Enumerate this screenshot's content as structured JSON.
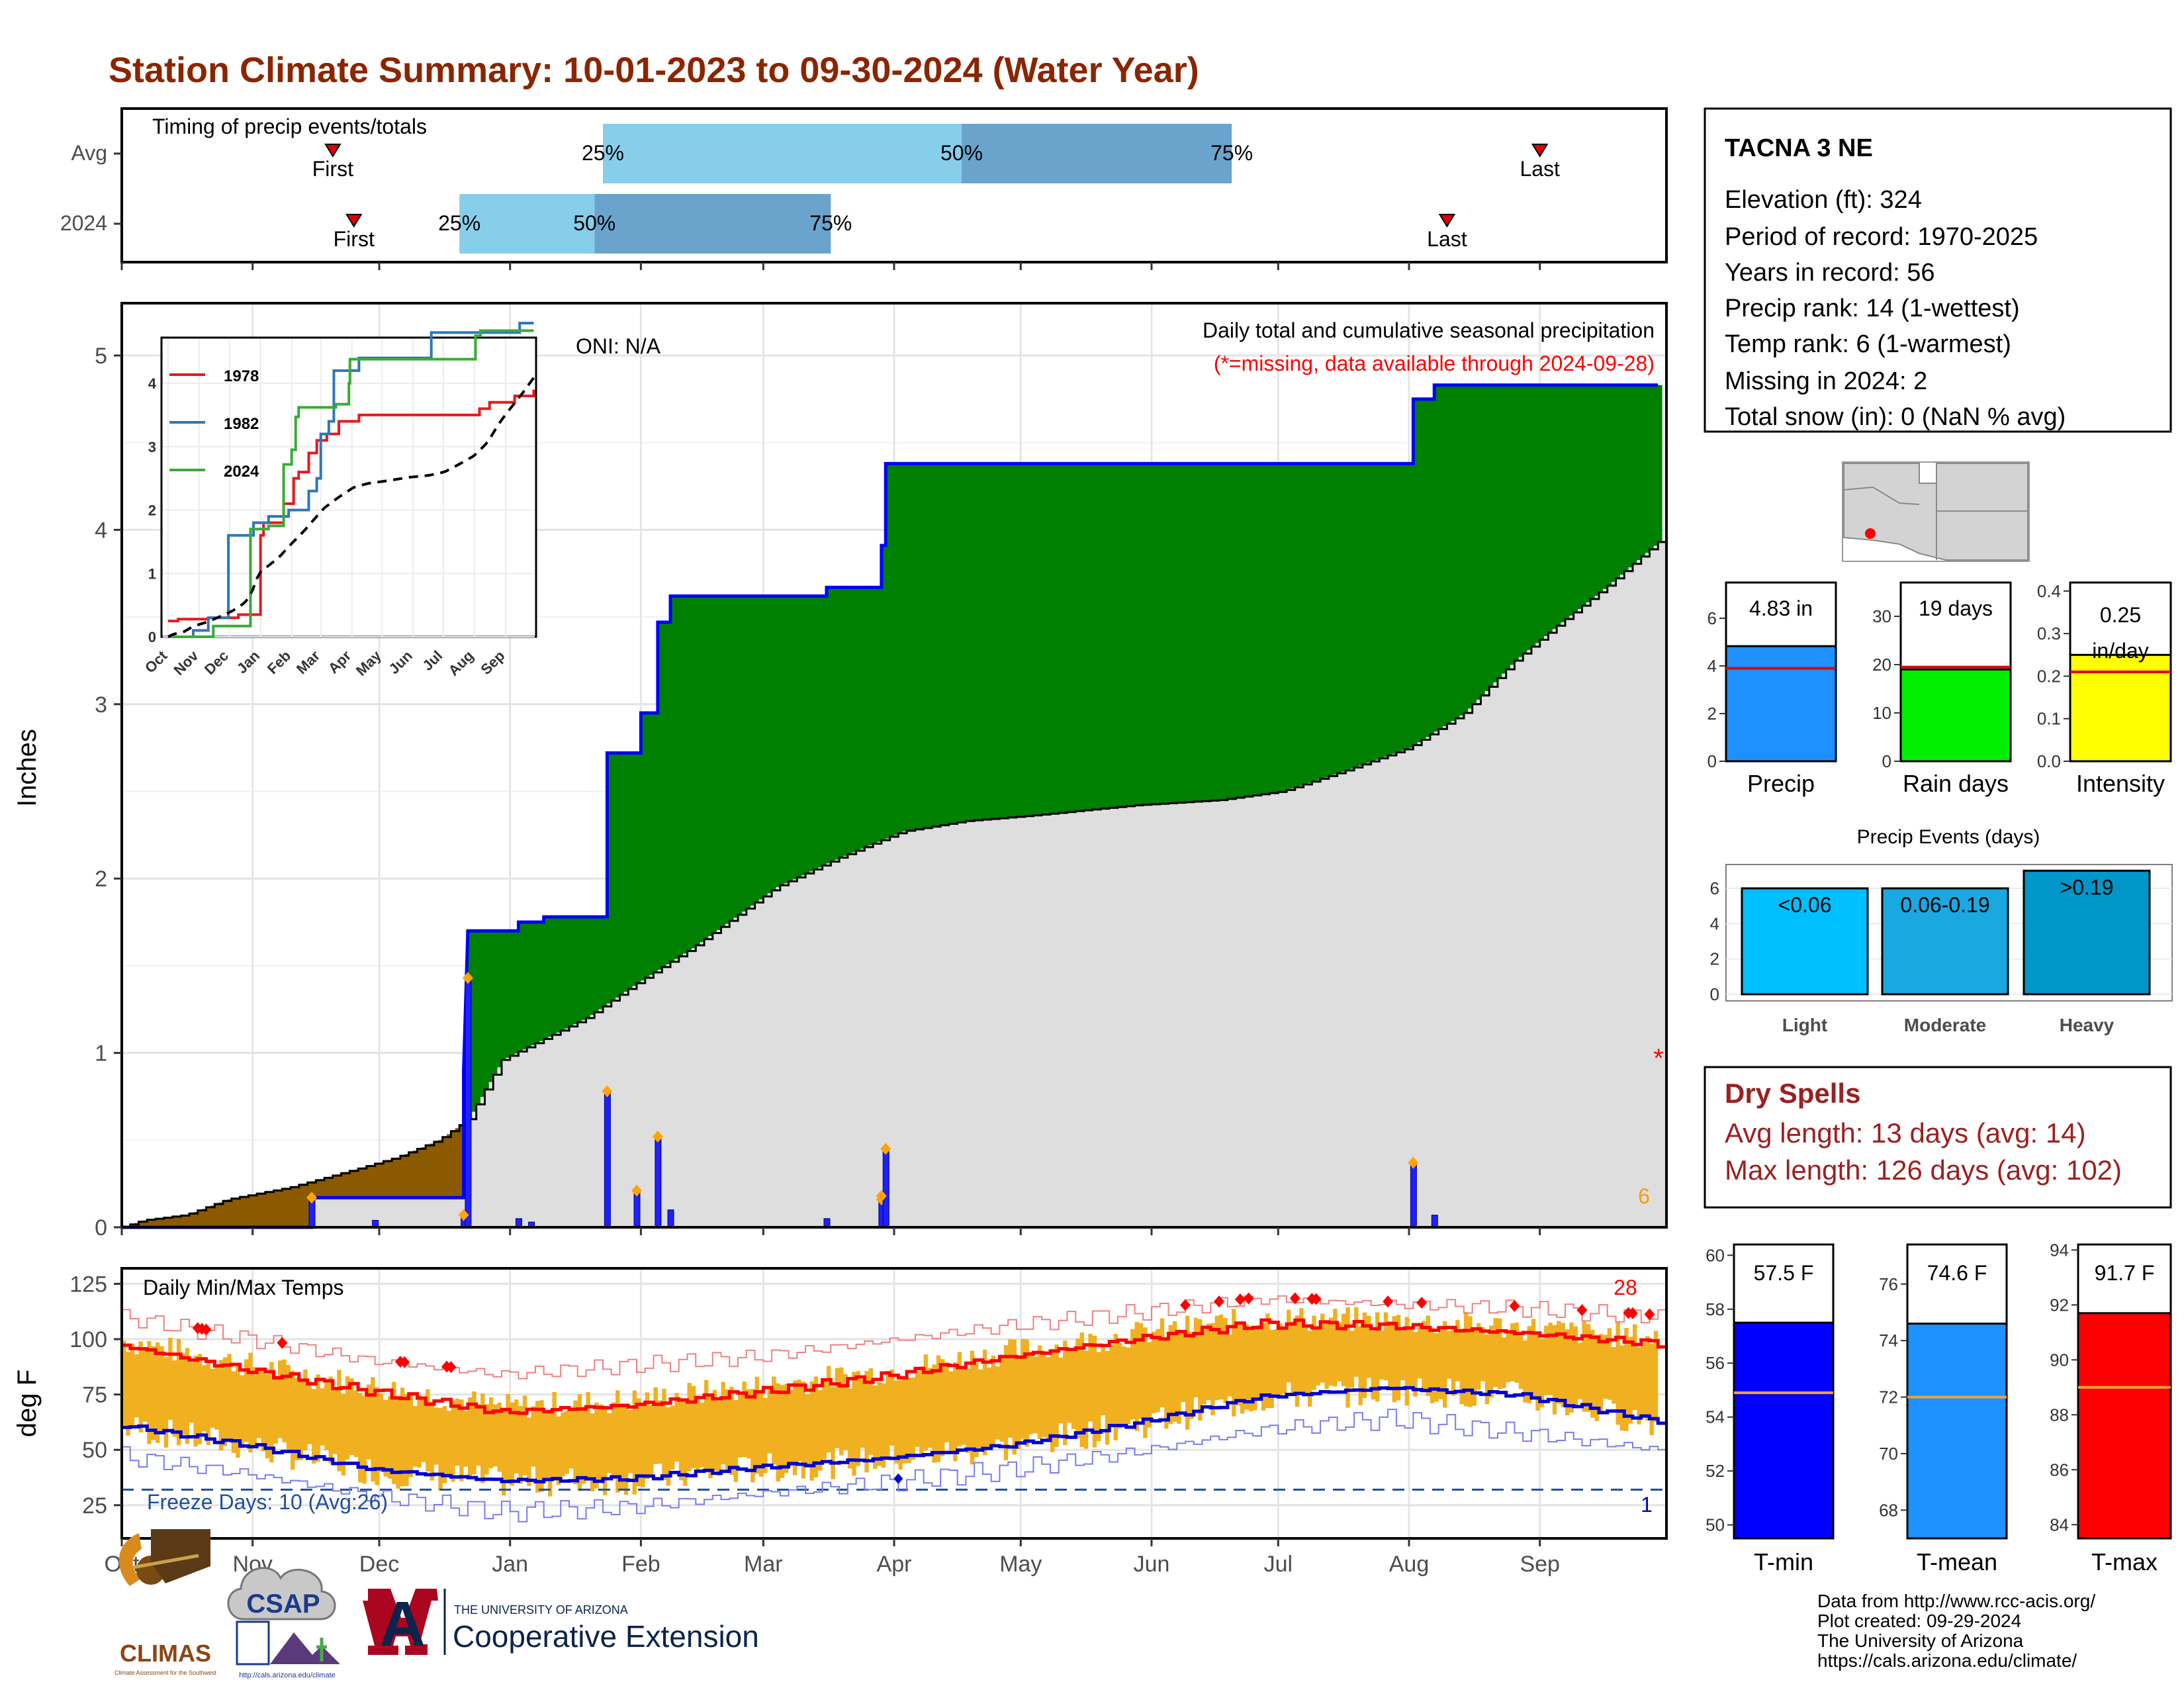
{
  "title": "Station Climate Summary: 10-01-2023 to 09-30-2024 (Water Year)",
  "colors": {
    "title": "#8b2500",
    "precip_fill": "#008000",
    "deficit_fill": "#8b5a00",
    "normal_fill": "#dedede",
    "precip_line": "#0000ff",
    "temp_band": "#f0b020",
    "tmax_avg": "#ff0000",
    "tmin_avg": "#0000cd",
    "dry": "#9b2020",
    "light_blue": "#87ceeb",
    "mid_blue": "#6aa4cc"
  },
  "timing": {
    "title": "Timing of precip events/totals",
    "rows": [
      {
        "label": "Avg",
        "first_label": "First",
        "last_label": "Last",
        "first": "2023-11-20",
        "last": "2024-09-01",
        "p25": "2024-01-23",
        "p50": "2024-04-17",
        "p75": "2024-06-20",
        "p25_label": "25%",
        "p50_label": "50%",
        "p75_label": "75%"
      },
      {
        "label": "2024",
        "first_label": "First",
        "last_label": "Last",
        "first": "2023-11-25",
        "last": "2024-08-10",
        "p25": "2023-12-20",
        "p50": "2024-01-21",
        "p75": "2024-03-17",
        "p25_label": "25%",
        "p50_label": "50%",
        "p75_label": "75%"
      }
    ]
  },
  "months": [
    "Oct",
    "Nov",
    "Dec",
    "Jan",
    "Feb",
    "Mar",
    "Apr",
    "May",
    "Jun",
    "Jul",
    "Aug",
    "Sep"
  ],
  "precip_panel": {
    "ylabel": "Inches",
    "title": "Daily total and cumulative seasonal precipitation",
    "subtitle": "(*=missing, data available through 2024-09-28)",
    "oni": "ONI: N/A",
    "missing_marker": "*",
    "missing_count": "6",
    "yticks": [
      "0",
      "1",
      "2",
      "3",
      "4",
      "5"
    ],
    "ylim": [
      0,
      5.3
    ]
  },
  "inset": {
    "xticks": [
      "Oct",
      "Nov",
      "Dec",
      "Jan",
      "Feb",
      "Mar",
      "Apr",
      "May",
      "Jun",
      "Jul",
      "Aug",
      "Sep"
    ],
    "yticks": [
      "0",
      "1",
      "2",
      "3",
      "4"
    ],
    "legend": [
      {
        "name": "1978",
        "color": "#e8191e"
      },
      {
        "name": "1982",
        "color": "#2e78b7"
      },
      {
        "name": "2024",
        "color": "#3aab36"
      }
    ]
  },
  "temp_panel": {
    "ylabel": "deg F",
    "title": "Daily Min/Max Temps",
    "freeze_text": "Freeze Days: 10 (Avg:26)",
    "hot_count": "28",
    "cold_count": "1",
    "yticks": [
      "25",
      "50",
      "75",
      "100",
      "125"
    ],
    "ylim": [
      10,
      132
    ],
    "freeze_line": 32
  },
  "station": {
    "name": "TACNA 3 NE",
    "lines": [
      "Elevation (ft): 324",
      "Period of record: 1970-2025",
      "Years in record: 56",
      "Precip rank: 14 (1-wettest)",
      "Temp rank: 6 (1-warmest)",
      "Missing in 2024: 2",
      "Total snow (in): 0 (NaN % avg)"
    ]
  },
  "mini_bars": [
    {
      "label": "Precip",
      "value_text": "4.83 in",
      "value": 4.83,
      "avg": 3.9,
      "ymax": 7.5,
      "yticks": [
        "0",
        "2",
        "4",
        "6"
      ],
      "color": "#1e90ff"
    },
    {
      "label": "Rain days",
      "value_text": "19 days",
      "value": 19,
      "avg": 19.5,
      "ymax": 37,
      "yticks": [
        "0",
        "10",
        "20",
        "30"
      ],
      "color": "#00ee00"
    },
    {
      "label": "Intensity",
      "value_text": "0.25 in/day",
      "value": 0.25,
      "avg": 0.21,
      "ymax": 0.42,
      "yticks": [
        "0.0",
        "0.1",
        "0.2",
        "0.3",
        "0.4"
      ],
      "color": "#ffff00"
    }
  ],
  "events": {
    "title": "Precip Events (days)",
    "categories": [
      "Light",
      "Moderate",
      "Heavy"
    ],
    "labels": [
      "<0.06",
      "0.06-0.19",
      ">0.19"
    ],
    "values": [
      6,
      6,
      7
    ],
    "yticks": [
      "0",
      "2",
      "4",
      "6"
    ],
    "colors": [
      "#00bfff",
      "#1aa8e0",
      "#0096c8"
    ]
  },
  "dry_spells": {
    "title": "Dry Spells",
    "avg_line": "Avg length: 13 days (avg: 14)",
    "max_line": "Max length: 126 days (avg: 102)"
  },
  "temp_bars": [
    {
      "label": "T-min",
      "value_text": "57.5 F",
      "value": 57.5,
      "avg": 54.9,
      "ymin": 49.5,
      "ymax": 60.4,
      "yticks": [
        "50",
        "52",
        "54",
        "56",
        "58",
        "60"
      ],
      "color": "#0000ff"
    },
    {
      "label": "T-mean",
      "value_text": "74.6 F",
      "value": 74.6,
      "avg": 72.0,
      "ymin": 67.0,
      "ymax": 77.4,
      "yticks": [
        "68",
        "70",
        "72",
        "74",
        "76"
      ],
      "color": "#1e90ff"
    },
    {
      "label": "T-max",
      "value_text": "91.7 F",
      "value": 91.7,
      "avg": 89.0,
      "ymin": 83.5,
      "ymax": 94.2,
      "yticks": [
        "84",
        "86",
        "88",
        "90",
        "92",
        "94"
      ],
      "color": "#ff0000"
    }
  ],
  "footer": {
    "lines": [
      "Data from http://www.rcc-acis.org/",
      "Plot created: 09-29-2024",
      "The University of Arizona",
      "https://cals.arizona.edu/climate/"
    ],
    "logos": {
      "climas": "CLIMAS",
      "climas_sub": "Climate Assessment for the Southwest",
      "csap": "CSAP",
      "csap_url": "http://cals.arizona.edu/climate",
      "ua_letter": "A",
      "ua_top": "THE UNIVERSITY OF ARIZONA",
      "ua_bottom": "Cooperative Extension"
    }
  },
  "chart_data": [
    {
      "type": "area",
      "title": "Daily total and cumulative seasonal precipitation",
      "ylabel": "Inches",
      "ylim": [
        0,
        5.3
      ],
      "x_unit": "day of water year (0 = Oct 1)",
      "cumulative_2024": [
        [
          0,
          0
        ],
        [
          45,
          0
        ],
        [
          45,
          0.17
        ],
        [
          81,
          0.17
        ],
        [
          81,
          0.9
        ],
        [
          82,
          1.7
        ],
        [
          94,
          1.7
        ],
        [
          94,
          1.75
        ],
        [
          100,
          1.75
        ],
        [
          100,
          1.78
        ],
        [
          115,
          1.78
        ],
        [
          115,
          2.72
        ],
        [
          123,
          2.72
        ],
        [
          123,
          2.95
        ],
        [
          127,
          2.95
        ],
        [
          127,
          3.47
        ],
        [
          130,
          3.47
        ],
        [
          130,
          3.62
        ],
        [
          167,
          3.62
        ],
        [
          167,
          3.67
        ],
        [
          180,
          3.67
        ],
        [
          180,
          3.91
        ],
        [
          181,
          3.91
        ],
        [
          181,
          4.38
        ],
        [
          306,
          4.38
        ],
        [
          306,
          4.75
        ],
        [
          311,
          4.75
        ],
        [
          311,
          4.83
        ],
        [
          364,
          4.83
        ]
      ],
      "normal_cumulative": [
        [
          0,
          0
        ],
        [
          5,
          0.04
        ],
        [
          15,
          0.07
        ],
        [
          25,
          0.16
        ],
        [
          40,
          0.23
        ],
        [
          55,
          0.33
        ],
        [
          65,
          0.4
        ],
        [
          75,
          0.5
        ],
        [
          82,
          0.62
        ],
        [
          90,
          0.96
        ],
        [
          110,
          1.2
        ],
        [
          122,
          1.4
        ],
        [
          135,
          1.6
        ],
        [
          155,
          1.95
        ],
        [
          170,
          2.12
        ],
        [
          185,
          2.27
        ],
        [
          200,
          2.33
        ],
        [
          215,
          2.36
        ],
        [
          240,
          2.42
        ],
        [
          260,
          2.45
        ],
        [
          275,
          2.5
        ],
        [
          290,
          2.62
        ],
        [
          305,
          2.75
        ],
        [
          318,
          2.95
        ],
        [
          330,
          3.25
        ],
        [
          340,
          3.45
        ],
        [
          352,
          3.68
        ],
        [
          364,
          3.93
        ]
      ],
      "daily": [
        [
          45,
          0.17
        ],
        [
          60,
          0.04
        ],
        [
          81,
          0.06
        ],
        [
          82,
          1.43
        ],
        [
          94,
          0.05
        ],
        [
          97,
          0.03
        ],
        [
          115,
          0.78
        ],
        [
          122,
          0.21
        ],
        [
          127,
          0.52
        ],
        [
          130,
          0.1
        ],
        [
          167,
          0.05
        ],
        [
          180,
          0.16
        ],
        [
          181,
          0.45
        ],
        [
          306,
          0.37
        ],
        [
          311,
          0.07
        ]
      ]
    },
    {
      "type": "line",
      "title": "Daily Min/Max Temps",
      "ylabel": "deg F",
      "ylim": [
        10,
        132
      ],
      "series": [
        {
          "name": "avg max",
          "points": [
            [
              0,
              97
            ],
            [
              30,
              86
            ],
            [
              60,
              76
            ],
            [
              90,
              67
            ],
            [
              120,
              70
            ],
            [
              150,
              76
            ],
            [
              180,
              83
            ],
            [
              210,
              92
            ],
            [
              240,
              100
            ],
            [
              270,
              107
            ],
            [
              300,
              106
            ],
            [
              330,
              103
            ],
            [
              364,
              98
            ]
          ]
        },
        {
          "name": "avg min",
          "points": [
            [
              0,
              61
            ],
            [
              30,
              52
            ],
            [
              60,
              41
            ],
            [
              90,
              36
            ],
            [
              120,
              37
            ],
            [
              150,
              42
            ],
            [
              180,
              46
            ],
            [
              210,
              52
            ],
            [
              240,
              62
            ],
            [
              270,
              74
            ],
            [
              300,
              78
            ],
            [
              330,
              75
            ],
            [
              364,
              63
            ]
          ]
        },
        {
          "name": "record max",
          "points": [
            [
              0,
              110
            ],
            [
              30,
              100
            ],
            [
              60,
              90
            ],
            [
              90,
              84
            ],
            [
              120,
              88
            ],
            [
              150,
              92
            ],
            [
              180,
              99
            ],
            [
              210,
              106
            ],
            [
              240,
              112
            ],
            [
              270,
              118
            ],
            [
              300,
              116
            ],
            [
              330,
              114
            ],
            [
              364,
              110
            ]
          ]
        },
        {
          "name": "record min",
          "points": [
            [
              0,
              47
            ],
            [
              30,
              39
            ],
            [
              60,
              29
            ],
            [
              90,
              22
            ],
            [
              120,
              24
            ],
            [
              150,
              30
            ],
            [
              180,
              35
            ],
            [
              210,
              41
            ],
            [
              240,
              49
            ],
            [
              270,
              59
            ],
            [
              300,
              64
            ],
            [
              330,
              58
            ],
            [
              364,
              50
            ]
          ]
        }
      ]
    }
  ]
}
